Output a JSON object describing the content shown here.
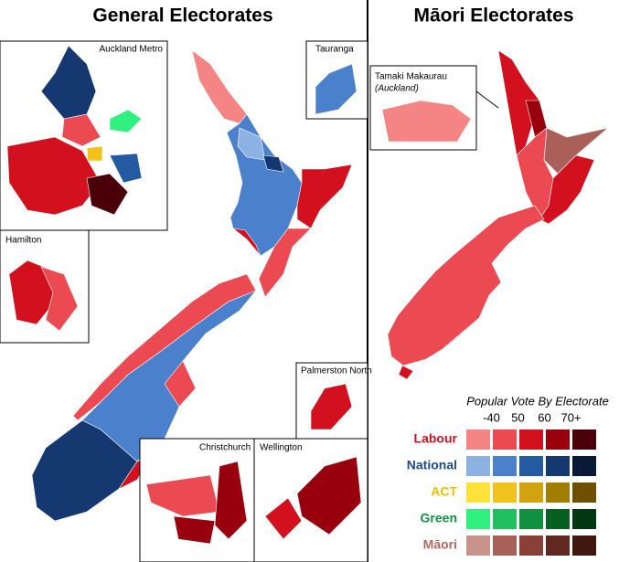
{
  "panels": [
    {
      "title": "General Electorates"
    },
    {
      "title": "Māori Electorates"
    }
  ],
  "insets": {
    "auckland": "Auckland Metro",
    "tauranga": "Tauranga",
    "hamilton": "Hamilton",
    "palmerston": "Palmerston North",
    "christchurch": "Christchurch",
    "wellington": "Wellington",
    "tamaki": "Tamaki Makaurau",
    "tamaki_sub": "(Auckland)"
  },
  "legend": {
    "title": "Popular Vote By Electorate",
    "columns": [
      "-40",
      "50",
      "60",
      "70+"
    ],
    "rows": [
      {
        "party": "Labour",
        "label_color": "#d01020",
        "colors": [
          "#f58585",
          "#ec4a52",
          "#d2101e",
          "#98000e",
          "#4a0008"
        ]
      },
      {
        "party": "National",
        "label_color": "#1c4a8c",
        "colors": [
          "#8cb2e4",
          "#4a80cc",
          "#245aa2",
          "#163870",
          "#0a1a36"
        ]
      },
      {
        "party": "ACT",
        "label_color": "#efc000",
        "colors": [
          "#fde23a",
          "#f2c21c",
          "#d2a210",
          "#a27e00",
          "#6e5000"
        ]
      },
      {
        "party": "Green",
        "label_color": "#109040",
        "colors": [
          "#30f080",
          "#20c060",
          "#109040",
          "#086020",
          "#033810"
        ]
      },
      {
        "party": "Māori",
        "label_color": "#b06a60",
        "colors": [
          "#c8948a",
          "#a86058",
          "#884038",
          "#602820",
          "#401810"
        ]
      }
    ]
  }
}
